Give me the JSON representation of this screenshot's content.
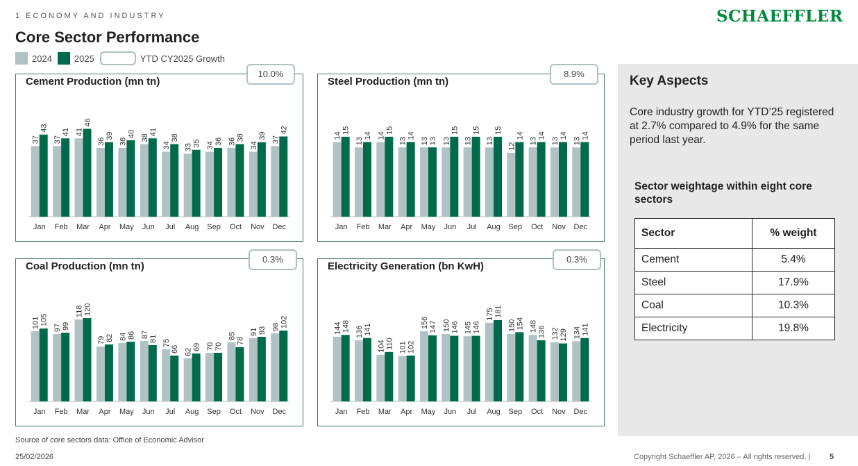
{
  "header": {
    "section": "1 ECONOMY AND INDUSTRY",
    "title": "Core Sector Performance",
    "logo": "SCHAEFFLER"
  },
  "legend": {
    "label_2024": "2024",
    "label_2025": "2025",
    "label_growth": "YTD CY2025 Growth"
  },
  "colors": {
    "series_2024": "#b0c2c4",
    "series_2025": "#006b4a",
    "panel_border": "#3f7a66",
    "badge_border": "#aebfc0"
  },
  "chart_data": [
    {
      "type": "bar",
      "title": "Cement Production (mn tn)",
      "growth": "10.0%",
      "categories": [
        "Jan",
        "Feb",
        "Mar",
        "Apr",
        "May",
        "Jun",
        "Jul",
        "Aug",
        "Sep",
        "Oct",
        "Nov",
        "Dec"
      ],
      "series": [
        {
          "name": "2024",
          "values": [
            37,
            37,
            41,
            36,
            36,
            38,
            34,
            33,
            34,
            36,
            34,
            37
          ]
        },
        {
          "name": "2025",
          "values": [
            43,
            41,
            46,
            39,
            40,
            41,
            38,
            35,
            36,
            38,
            39,
            42
          ]
        }
      ],
      "ylim": [
        0,
        60
      ]
    },
    {
      "type": "bar",
      "title": "Steel Production (mn tn)",
      "growth": "8.9%",
      "categories": [
        "Jan",
        "Feb",
        "Mar",
        "Apr",
        "May",
        "Jun",
        "Jul",
        "Aug",
        "Sep",
        "Oct",
        "Nov",
        "Dec"
      ],
      "series": [
        {
          "name": "2024",
          "values": [
            14,
            13,
            14,
            13,
            13,
            13,
            13,
            13,
            12,
            13,
            13,
            13
          ]
        },
        {
          "name": "2025",
          "values": [
            15,
            14,
            15,
            14,
            13,
            15,
            15,
            15,
            14,
            14,
            14,
            14
          ]
        }
      ],
      "ylim": [
        0,
        21.5
      ]
    },
    {
      "type": "bar",
      "title": "Coal Production (mn tn)",
      "growth": "0.3%",
      "categories": [
        "Jan",
        "Feb",
        "Mar",
        "Apr",
        "May",
        "Jun",
        "Jul",
        "Aug",
        "Sep",
        "Oct",
        "Nov",
        "Dec"
      ],
      "series": [
        {
          "name": "2024",
          "values": [
            101,
            97,
            118,
            79,
            84,
            87,
            75,
            62,
            70,
            85,
            91,
            98
          ]
        },
        {
          "name": "2025",
          "values": [
            105,
            99,
            120,
            82,
            86,
            81,
            66,
            69,
            70,
            78,
            93,
            102
          ]
        }
      ],
      "ylim": [
        0,
        165
      ]
    },
    {
      "type": "bar",
      "title": "Electricity Generation (bn KwH)",
      "growth": "0.3%",
      "categories": [
        "Jan",
        "Feb",
        "Mar",
        "Apr",
        "May",
        "Jun",
        "Jul",
        "Aug",
        "Sep",
        "Oct",
        "Nov",
        "Dec"
      ],
      "series": [
        {
          "name": "2024",
          "values": [
            144,
            136,
            104,
            101,
            156,
            150,
            145,
            175,
            150,
            148,
            132,
            134
          ]
        },
        {
          "name": "2025",
          "values": [
            148,
            141,
            110,
            102,
            147,
            146,
            146,
            181,
            154,
            136,
            129,
            141
          ]
        }
      ],
      "ylim": [
        0,
        255
      ]
    }
  ],
  "aside": {
    "title": "Key Aspects",
    "text": "Core industry growth for YTD’25 registered at 2.7% compared to 4.9% for the same period last year.",
    "subheading": "Sector weightage within eight core sectors",
    "table": {
      "headers": [
        "Sector",
        "% weight"
      ],
      "rows": [
        [
          "Cement",
          "5.4%"
        ],
        [
          "Steel",
          "17.9%"
        ],
        [
          "Coal",
          "10.3%"
        ],
        [
          "Electricity",
          "19.8%"
        ]
      ]
    }
  },
  "footer": {
    "source": "Source of core sectors data: Office of Economic Advisor",
    "date": "25/02/2026",
    "copyright": "Copyright Schaeffler AP, 2026 – All rights reserved. |",
    "page": "5"
  }
}
